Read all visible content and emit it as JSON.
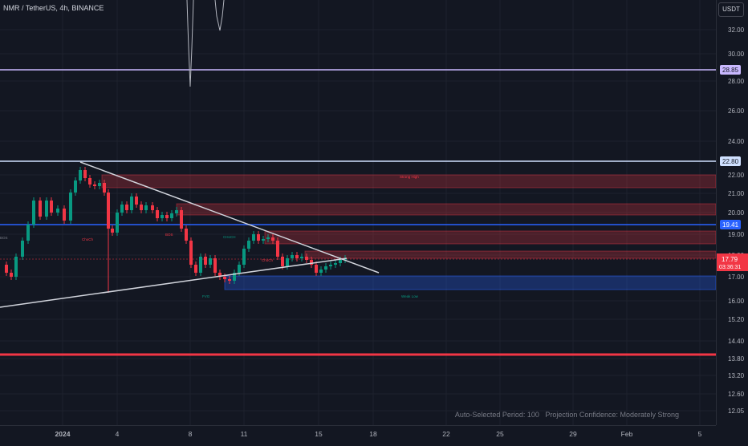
{
  "header": {
    "symbol": "NMR / TetherUS, 4h, BINANCE",
    "currency": "USDT"
  },
  "price_axis": {
    "ticks": [
      "32.00",
      "30.00",
      "28.00",
      "26.00",
      "24.00",
      "22.00",
      "21.00",
      "20.00",
      "19.00",
      "18.00",
      "17.00",
      "16.00",
      "15.20",
      "14.40",
      "13.80",
      "13.20",
      "12.60",
      "12.05"
    ]
  },
  "price_labels": [
    {
      "text": "28.85",
      "color": "#c9b8ff",
      "fg": "#131722"
    },
    {
      "text": "22.80",
      "color": "#cfe0ff",
      "fg": "#131722"
    },
    {
      "text": "19.41",
      "color": "#2962ff",
      "fg": "#ffffff"
    }
  ],
  "current_price": {
    "price": "17.79",
    "countdown": "03:36:31",
    "color": "#f23645"
  },
  "time_axis": {
    "ticks": [
      "2024",
      "4",
      "8",
      "11",
      "15",
      "18",
      "22",
      "25",
      "29",
      "Feb",
      "5"
    ]
  },
  "chart_labels": [
    {
      "text": "ChoCh",
      "color": "#f23645"
    },
    {
      "text": "BOS",
      "color": "#f23645"
    },
    {
      "text": "CHoCH",
      "color": "#089981"
    },
    {
      "text": "ChoCh",
      "color": "#f23645"
    },
    {
      "text": "FVG",
      "color": "#089981"
    },
    {
      "text": "Strong High",
      "color": "#f23645"
    },
    {
      "text": "Weak Low",
      "color": "#089981"
    },
    {
      "text": "BOS",
      "color": "#787b86"
    }
  ],
  "footer": {
    "period": "Auto-Selected Period: 100",
    "confidence": "Projection Confidence: Moderately Strong"
  },
  "colors": {
    "background": "#131722",
    "up": "#089981",
    "down": "#f23645",
    "grid": "#1e222d"
  }
}
